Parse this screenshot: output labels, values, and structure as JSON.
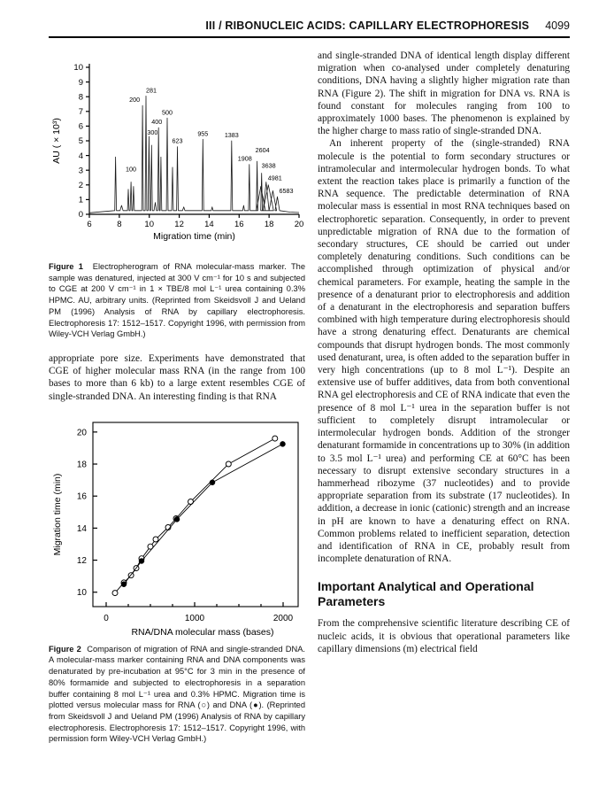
{
  "page": {
    "header": {
      "title": "III / RIBONUCLEIC ACIDS: CAPILLARY ELECTROPHORESIS",
      "page_number": "4099"
    }
  },
  "left": {
    "figure1": {
      "label": "Figure 1",
      "text": "Electropherogram of RNA molecular-mass marker. The sample was denatured, injected at 300 V cm⁻¹ for 10 s and subjected to CGE at 200 V cm⁻¹ in 1 × TBE/8 mol L⁻¹ urea containing 0.3% HPMC. AU, arbitrary units. (Reprinted from Skeidsvoll J and Ueland PM (1996) Analysis of RNA by capillary electrophoresis. Electrophoresis 17: 1512–1517. Copyright 1996, with permission from Wiley-VCH Verlag GmbH.)"
    },
    "para": "appropriate pore size. Experiments have demonstrated that CGE of higher molecular mass RNA (in the range from 100 bases to more than 6 kb) to a large extent resembles CGE of single-stranded DNA. An interesting finding is that RNA",
    "figure2": {
      "label": "Figure 2",
      "text": "Comparison of migration of RNA and single-stranded DNA. A molecular-mass marker containing RNA and DNA components was denaturated by pre-incubation at 95°C for 3 min in the presence of 80% formamide and subjected to electrophoresis in a separation buffer containing 8 mol L⁻¹ urea and 0.3% HPMC. Migration time is plotted versus molecular mass for RNA (○) and DNA (●). (Reprinted from Skeidsvoll J and Ueland PM (1996) Analysis of RNA by capillary electrophoresis. Electrophoresis 17: 1512–1517. Copyright 1996, with permission form Wiley-VCH Verlag GmbH.)"
    }
  },
  "right": {
    "para1": "and single-stranded DNA of identical length display different migration when co-analysed under completely denaturing conditions, DNA having a slightly higher migration rate than RNA (Figure 2). The shift in migration for DNA vs. RNA is found constant for molecules ranging from 100 to approximately 1000 bases. The phenomenon is explained by the higher charge to mass ratio of single-stranded DNA.",
    "para2": "An inherent property of the (single-stranded) RNA molecule is the potential to form secondary structures or intramolecular and intermolecular hydrogen bonds. To what extent the reaction takes place is primarily a function of the RNA sequence. The predictable determination of RNA molecular mass is essential in most RNA techniques based on electrophoretic separation. Consequently, in order to prevent unpredictable migration of RNA due to the formation of secondary structures, CE should be carried out under completely denaturing conditions. Such conditions can be accomplished through optimization of physical and/or chemical parameters. For example, heating the sample in the presence of a denaturant prior to electrophoresis and addition of a denaturant in the electrophoresis and separation buffers combined with high temperature during electrophoresis should have a strong denaturing effect. Denaturants are chemical compounds that disrupt hydrogen bonds. The most commonly used denaturant, urea, is often added to the separation buffer in very high concentrations (up to 8 mol L⁻¹). Despite an extensive use of buffer additives, data from both conventional RNA gel electrophoresis and CE of RNA indicate that even the presence of 8 mol L⁻¹ urea in the separation buffer is not sufficient to completely disrupt intramolecular or intermolecular hydrogen bonds. Addition of the stronger denaturant formamide in concentrations up to 30% (in addition to 3.5 mol L⁻¹ urea) and performing CE at 60°C has been necessary to disrupt extensive secondary structures in a hammerhead ribozyme (37 nucleotides) and to provide appropriate separation from its substrate (17 nucleotides). In addition, a decrease in ionic (cationic) strength and an increase in pH are known to have a denaturing effect on RNA. Common problems related to inefficient separation, detection and identification of RNA in CE, probably result from incomplete denaturation of RNA.",
    "heading": "Important Analytical and Operational Parameters",
    "para3": "From the comprehensive scientific literature describing CE of nucleic acids, it is obvious that operational parameters like capillary dimensions (m) electrical field"
  },
  "chart_data": [
    {
      "type": "line",
      "title": "Electropherogram of RNA molecular-mass marker",
      "xlabel": "Migration time (min)",
      "ylabel": "AU ( × 10³)",
      "xlim": [
        6,
        20
      ],
      "ylim": [
        0,
        10
      ],
      "xticks": [
        6,
        8,
        10,
        12,
        14,
        16,
        18,
        20
      ],
      "yticks": [
        0,
        1,
        2,
        3,
        4,
        5,
        6,
        7,
        8,
        9,
        10
      ],
      "grid": false,
      "baseline": 0.25,
      "peaks": [
        {
          "time": 7.75,
          "au": 3.9,
          "label": ""
        },
        {
          "time": 8.15,
          "au": 0.6,
          "label": "",
          "width": 0.1
        },
        {
          "time": 8.6,
          "au": 1.7,
          "label": ""
        },
        {
          "time": 8.78,
          "au": 2.2,
          "label": "100",
          "ldy": -8
        },
        {
          "time": 8.95,
          "au": 1.9,
          "label": ""
        },
        {
          "time": 9.55,
          "au": 7.4,
          "label": "200",
          "ldx": -9
        },
        {
          "time": 9.78,
          "au": 8.05,
          "label": "281",
          "ldx": 6
        },
        {
          "time": 9.98,
          "au": 5.3,
          "label": "300",
          "ldx": 4,
          "ldy": 2
        },
        {
          "time": 10.15,
          "au": 4.7,
          "label": ""
        },
        {
          "time": 10.4,
          "au": 0.8,
          "label": "",
          "width": 0.08
        },
        {
          "time": 10.62,
          "au": 5.9,
          "label": "400",
          "ldx": -2
        },
        {
          "time": 10.78,
          "au": 3.9,
          "label": ""
        },
        {
          "time": 11.2,
          "au": 6.55,
          "label": "500"
        },
        {
          "time": 11.55,
          "au": 3.2,
          "label": ""
        },
        {
          "time": 11.88,
          "au": 4.6,
          "label": "623"
        },
        {
          "time": 12.3,
          "au": 0.5,
          "label": "",
          "width": 0.08
        },
        {
          "time": 13.58,
          "au": 5.1,
          "label": "955"
        },
        {
          "time": 14.2,
          "au": 0.5,
          "label": "",
          "width": 0.06
        },
        {
          "time": 15.5,
          "au": 5.0,
          "label": "1383"
        },
        {
          "time": 16.3,
          "au": 0.6,
          "label": "",
          "width": 0.06
        },
        {
          "time": 16.68,
          "au": 3.4,
          "label": "1908",
          "ldx": -5
        },
        {
          "time": 17.2,
          "au": 3.6,
          "label": "2604",
          "ldx": 6,
          "ldy": -6
        },
        {
          "time": 17.45,
          "au": 1.9,
          "label": "",
          "width": 0.3
        },
        {
          "time": 17.5,
          "au": 2.8,
          "label": "3638",
          "ldx": 8,
          "ldy": -2
        },
        {
          "time": 17.8,
          "au": 2.2,
          "label": "4981",
          "ldx": 10,
          "ldy": 2,
          "width": 0.2
        },
        {
          "time": 17.95,
          "au": 2.0,
          "label": "",
          "width": 0.35
        },
        {
          "time": 18.25,
          "au": 1.6,
          "label": "",
          "width": 0.25
        },
        {
          "time": 18.55,
          "au": 1.2,
          "label": "6583",
          "ldx": 10,
          "width": 0.15
        }
      ]
    },
    {
      "type": "scatter",
      "title": "Migration time versus RNA/DNA molecular mass",
      "xlabel": "RNA/DNA molecular mass (bases)",
      "ylabel": "Migration time (min)",
      "xlim": [
        -150,
        2170
      ],
      "ylim": [
        9.1,
        20.6
      ],
      "xticks": [
        0,
        1000,
        2000
      ],
      "xminorticks": [
        250,
        500,
        750,
        1250,
        1500,
        1750
      ],
      "yticks": [
        10,
        12,
        14,
        16,
        18,
        20
      ],
      "grid": false,
      "legend": "in caption: RNA (○), DNA (●)",
      "series": [
        {
          "name": "RNA",
          "marker": "open-circle",
          "points": [
            [
              100,
              9.95
            ],
            [
              200,
              10.6
            ],
            [
              281,
              11.05
            ],
            [
              340,
              11.5
            ],
            [
              400,
              12.1
            ],
            [
              500,
              12.85
            ],
            [
              560,
              13.3
            ],
            [
              700,
              14.05
            ],
            [
              790,
              14.6
            ],
            [
              955,
              15.65
            ],
            [
              1383,
              18.0
            ],
            [
              1908,
              19.6
            ]
          ]
        },
        {
          "name": "DNA",
          "marker": "filled-circle",
          "points": [
            [
              200,
              10.5
            ],
            [
              400,
              11.95
            ],
            [
              800,
              14.55
            ],
            [
              1200,
              16.85
            ],
            [
              1995,
              19.25
            ]
          ]
        }
      ]
    }
  ]
}
